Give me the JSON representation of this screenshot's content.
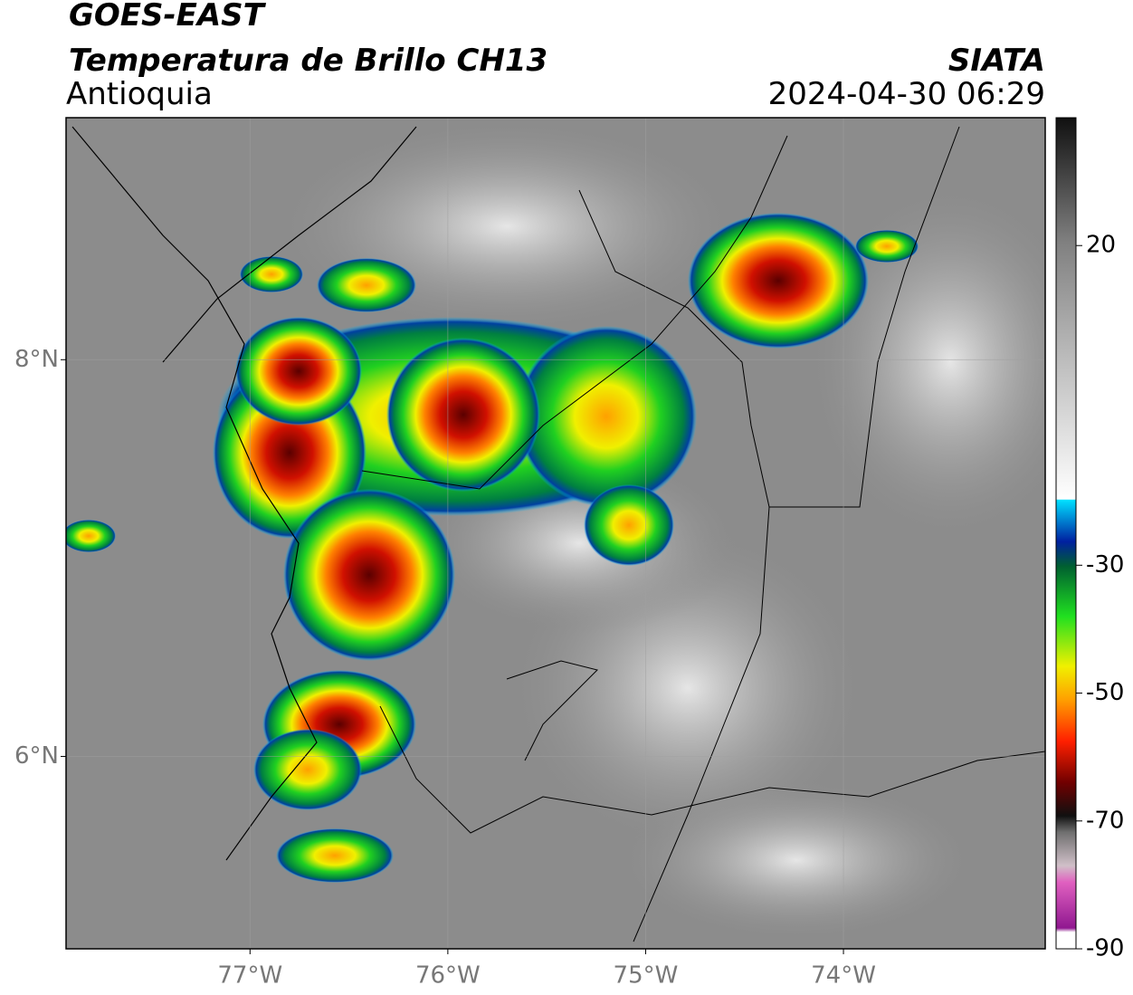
{
  "header": {
    "title": "GOES-EAST",
    "product": "Temperatura de Brillo CH13",
    "region": "Antioquia",
    "agency": "SIATA",
    "timestamp": "2024-04-30 06:29"
  },
  "map": {
    "xlim": [
      -77.93,
      -72.98
    ],
    "ylim": [
      5.03,
      9.22
    ],
    "xticks": [
      {
        "value": -77,
        "label": "77°W"
      },
      {
        "value": -76,
        "label": "76°W"
      },
      {
        "value": -75,
        "label": "75°W"
      },
      {
        "value": -74,
        "label": "74°W"
      }
    ],
    "yticks": [
      {
        "value": 8,
        "label": "8°N"
      },
      {
        "value": 6,
        "label": "6°N"
      }
    ]
  },
  "colorbar": {
    "lim": [
      -90,
      40
    ],
    "ticks": [
      20,
      -30,
      -50,
      -70,
      -90
    ]
  }
}
